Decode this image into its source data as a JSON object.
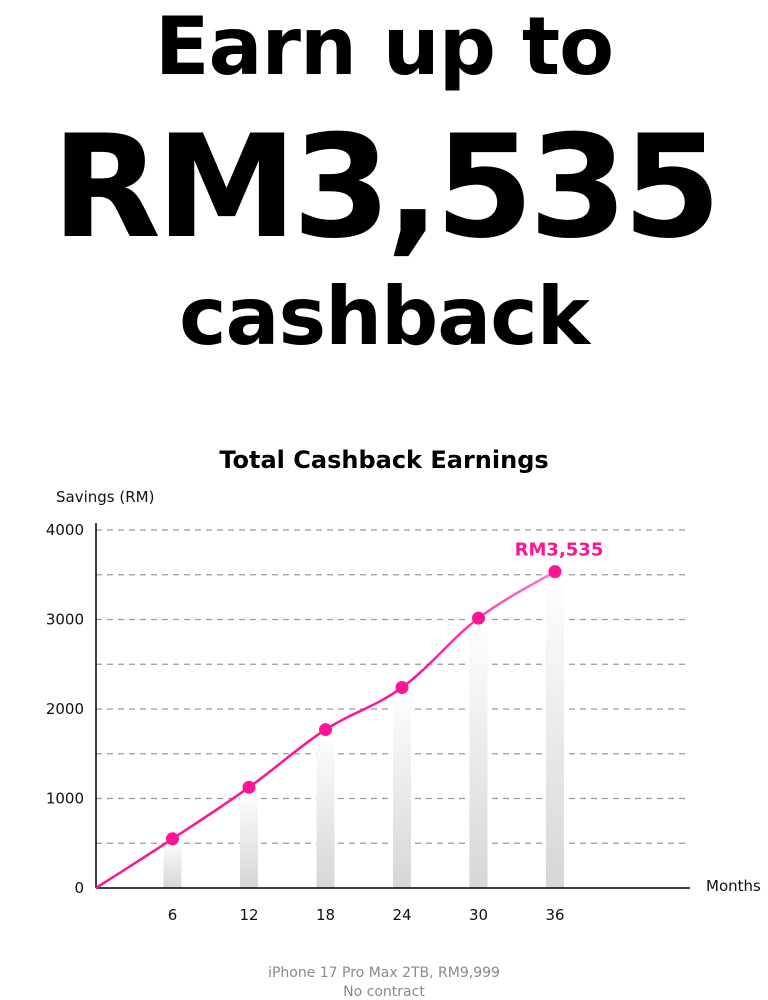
{
  "headline": {
    "line1": "Earn up to",
    "line2": "RM3,535",
    "line3": "cashback"
  },
  "chart_data": {
    "type": "line",
    "title": "Total Cashback Earnings",
    "ylabel": "Savings (RM)",
    "xlabel": "Months",
    "x": [
      0,
      6,
      12,
      18,
      24,
      30,
      36
    ],
    "x_tick_labels": [
      "6",
      "12",
      "18",
      "24",
      "30",
      "36"
    ],
    "y_tick_labels": [
      "0",
      "1000",
      "2000",
      "3000",
      "4000"
    ],
    "values": [
      0,
      550,
      1125,
      1770,
      2240,
      3015,
      3535
    ],
    "ylim": [
      0,
      4000
    ],
    "xlim": [
      0,
      42
    ],
    "grid": true,
    "annotation": "RM3,535",
    "colors": {
      "line": "#ff1493",
      "point": "#ff1493",
      "annotation": "#ff1493",
      "grid": "#9a9a9a"
    }
  },
  "footer": {
    "line1": "iPhone 17 Pro Max 2TB, RM9,999",
    "line2": "No contract"
  }
}
